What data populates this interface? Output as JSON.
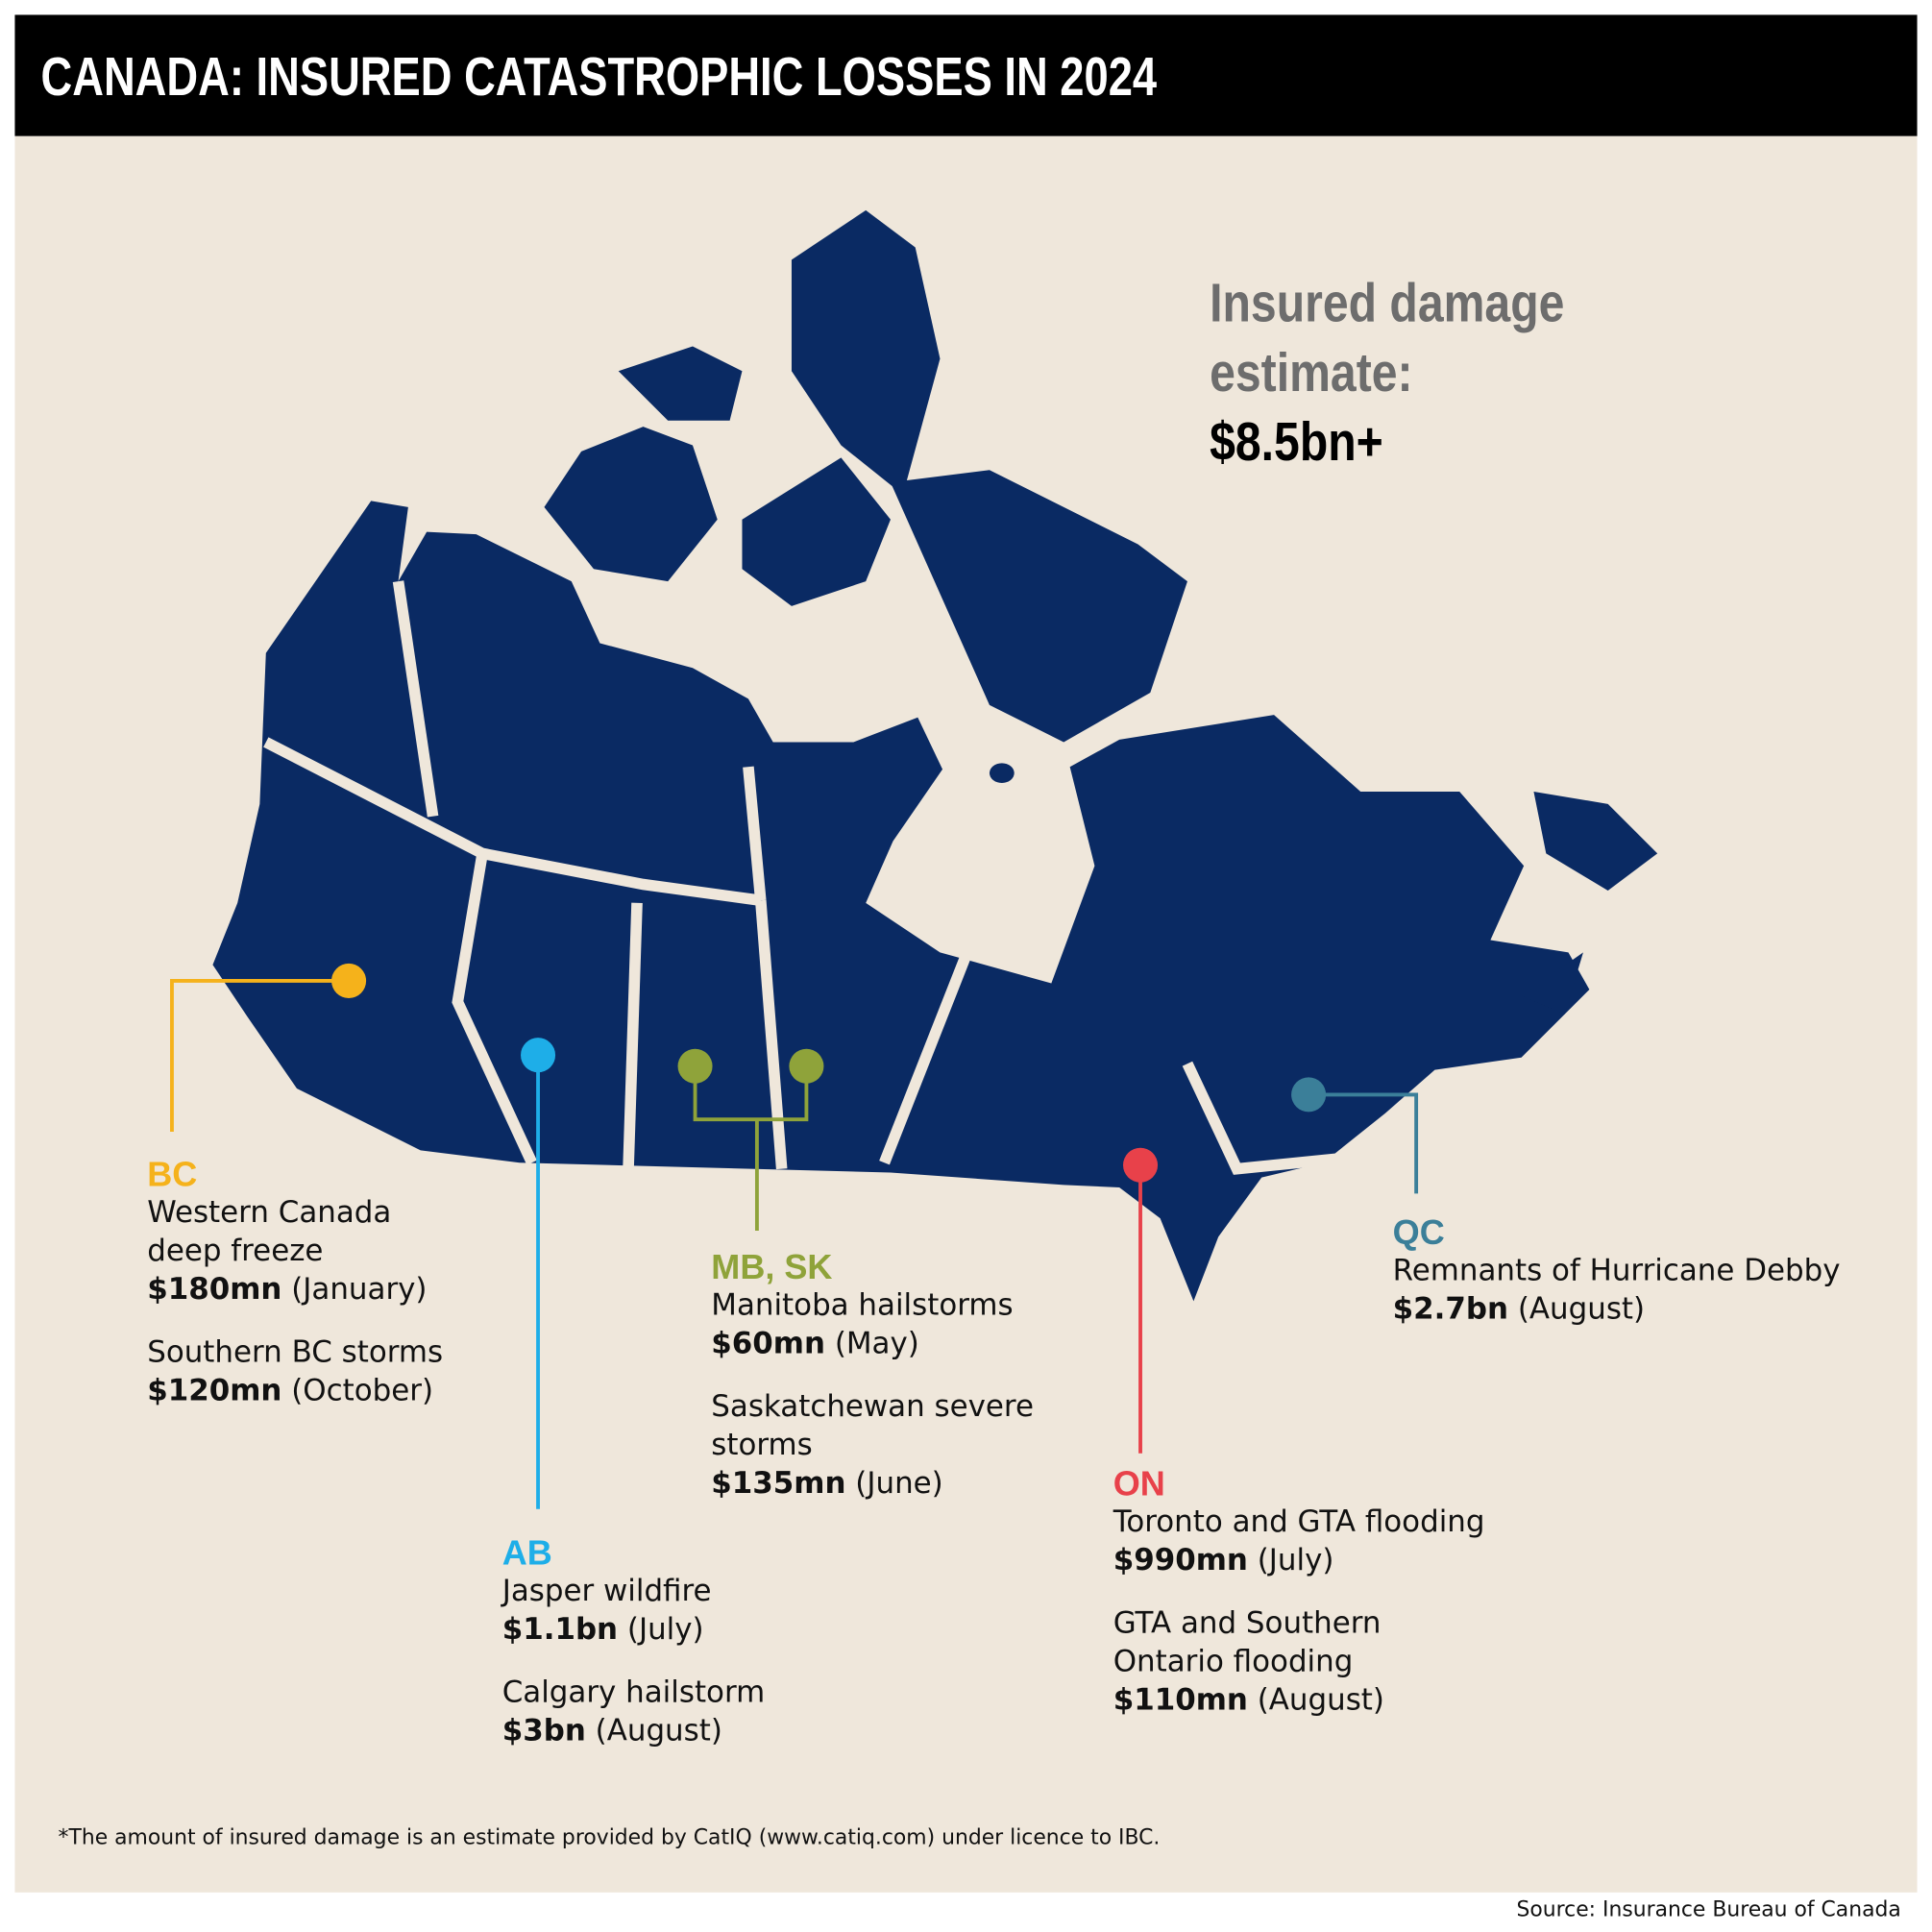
{
  "header": {
    "title": "CANADA: INSURED CATASTROPHIC LOSSES IN 2024"
  },
  "summary": {
    "label": [
      "Insured damage",
      "estimate:"
    ],
    "value": "$8.5bn+"
  },
  "regions": [
    {
      "code": "BC",
      "color": "#f5b21b",
      "events": [
        {
          "name": [
            "Western Canada",
            "deep freeze"
          ],
          "amount": "$180mn",
          "period": "(January)"
        },
        {
          "name": [
            "Southern BC storms"
          ],
          "amount": "$120mn",
          "period": "(October)"
        }
      ]
    },
    {
      "code": "AB",
      "color": "#1eaee8",
      "events": [
        {
          "name": [
            "Jasper wildfire"
          ],
          "amount": "$1.1bn",
          "period": "(July)"
        },
        {
          "name": [
            "Calgary hailstorm"
          ],
          "amount": "$3bn",
          "period": "(August)"
        }
      ]
    },
    {
      "code": "MB, SK",
      "color": "#8fa33a",
      "events": [
        {
          "name": [
            "Manitoba hailstorms"
          ],
          "amount": "$60mn",
          "period": "(May)"
        },
        {
          "name": [
            "Saskatchewan severe",
            "storms"
          ],
          "amount": "$135mn",
          "period": "(June)"
        }
      ]
    },
    {
      "code": "ON",
      "color": "#e8414a",
      "events": [
        {
          "name": [
            "Toronto and GTA flooding"
          ],
          "amount": "$990mn",
          "period": "(July)"
        },
        {
          "name": [
            "GTA and Southern",
            "Ontario flooding"
          ],
          "amount": "$110mn",
          "period": "(August)"
        }
      ]
    },
    {
      "code": "QC",
      "color": "#3b7f99",
      "events": [
        {
          "name": [
            "Remnants of Hurricane Debby"
          ],
          "amount": "$2.7bn",
          "period": "(August)"
        }
      ]
    }
  ],
  "footnote": "*The amount of insured damage is an estimate provided by CatIQ (www.catiq.com) under licence to IBC.",
  "source": "Source: Insurance Bureau of Canada"
}
